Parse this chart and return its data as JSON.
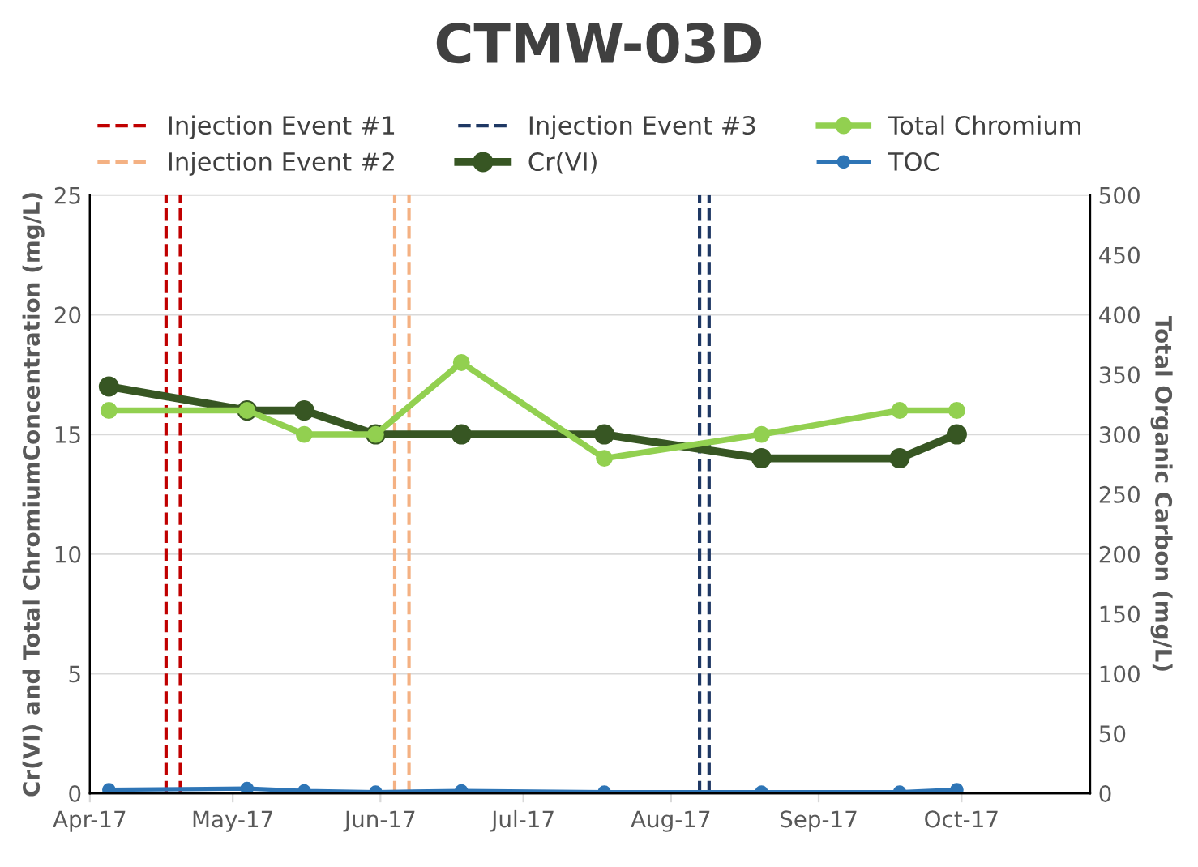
{
  "chart_data": {
    "type": "line",
    "title": "CTMW-03D",
    "ylabel": "Cr(VI) and Total ChromiumConcentration (mg/L)",
    "y2label": "Total Organic Carbon (mg/L)",
    "x": [
      "2017-04-05",
      "2017-05-04",
      "2017-05-16",
      "2017-05-31",
      "2017-06-18",
      "2017-07-18",
      "2017-08-20",
      "2017-09-18",
      "2017-09-30"
    ],
    "series": [
      {
        "name": "Cr(VI)",
        "color": "#375623",
        "values": [
          17,
          16,
          16,
          15,
          15,
          15,
          14,
          14,
          15
        ]
      },
      {
        "name": "Total Chromium",
        "color": "#92d050",
        "values": [
          16,
          16,
          15,
          15,
          18,
          14,
          15,
          16,
          16
        ]
      },
      {
        "name": "TOC",
        "color": "#2e75b6",
        "axis": "y2",
        "values": [
          3,
          4,
          2,
          1,
          2,
          1,
          1,
          1,
          3
        ]
      }
    ],
    "ref_lines": [
      {
        "axis": "x",
        "value": "2017-04-17",
        "label": "Injection Event #1",
        "color": "#c00000",
        "line_style": "dashed"
      },
      {
        "axis": "x",
        "value": "2017-04-20",
        "label": null,
        "color": "#c00000",
        "line_style": "dashed"
      },
      {
        "axis": "x",
        "value": "2017-06-04",
        "label": "Injection Event #2",
        "color": "#f4b183",
        "line_style": "dashed"
      },
      {
        "axis": "x",
        "value": "2017-06-07",
        "label": null,
        "color": "#f4b183",
        "line_style": "dashed"
      },
      {
        "axis": "x",
        "value": "2017-08-07",
        "label": "Injection Event #3",
        "color": "#1f3864",
        "line_style": "dashed"
      },
      {
        "axis": "x",
        "value": "2017-08-09",
        "label": null,
        "color": "#1f3864",
        "line_style": "dashed"
      }
    ],
    "xlim": [
      "2017-04-01",
      "2017-10-28"
    ],
    "xticks": [
      {
        "value": "2017-04-01",
        "label": "Apr-17"
      },
      {
        "value": "2017-05-01",
        "label": "May-17"
      },
      {
        "value": "2017-06-01",
        "label": "Jun-17"
      },
      {
        "value": "2017-07-01",
        "label": "Jul-17"
      },
      {
        "value": "2017-08-01",
        "label": "Aug-17"
      },
      {
        "value": "2017-09-01",
        "label": "Sep-17"
      },
      {
        "value": "2017-10-01",
        "label": "Oct-17"
      }
    ],
    "ylim": [
      0,
      25
    ],
    "yticks": [
      0,
      5,
      10,
      15,
      20,
      25
    ],
    "y2lim": [
      0,
      500
    ],
    "y2ticks": [
      0,
      50,
      100,
      150,
      200,
      250,
      300,
      350,
      400,
      450,
      500
    ],
    "grid": "y",
    "legend": "top",
    "marker": "circle",
    "line_style": "solid"
  }
}
